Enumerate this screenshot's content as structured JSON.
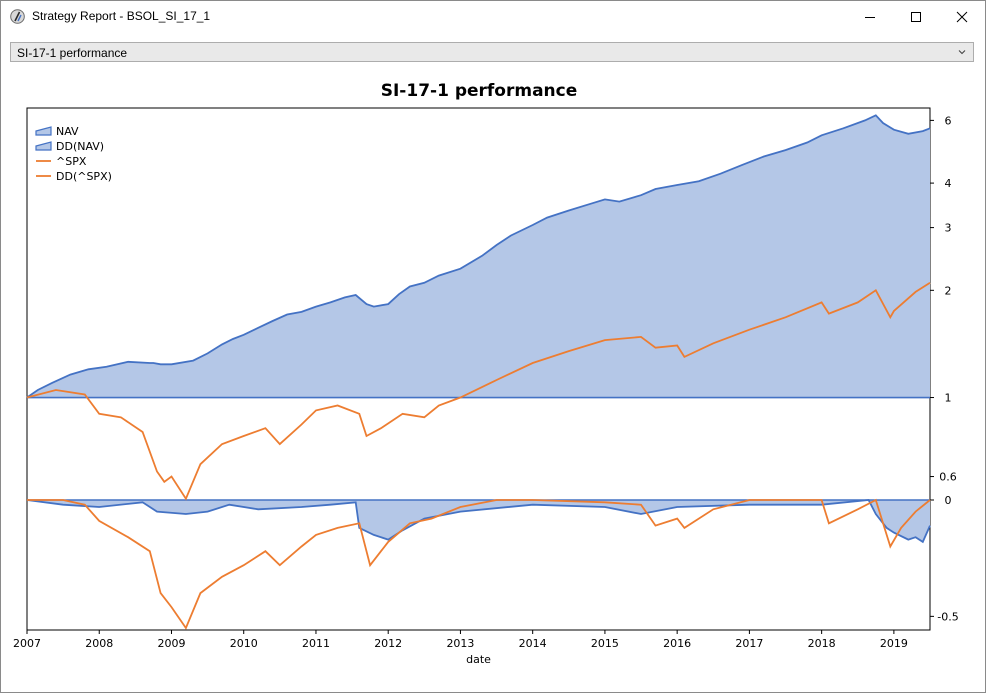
{
  "window": {
    "title": "Strategy Report - BSOL_SI_17_1",
    "icon": "app-icon",
    "buttons": [
      "minimize-icon",
      "maximize-icon",
      "close-icon"
    ]
  },
  "selector": {
    "value": "SI-17-1 performance",
    "icon": "chevron-down-icon"
  },
  "chart_data": {
    "type": "area",
    "title": "SI-17-1 performance",
    "xlabel": "date",
    "ylabel": "",
    "legend_position": "top-left",
    "x_ticks": [
      "2007",
      "2008",
      "2009",
      "2010",
      "2011",
      "2012",
      "2013",
      "2014",
      "2015",
      "2016",
      "2017",
      "2018",
      "2019"
    ],
    "xlim": [
      "2007-01-01",
      "2019-07-01"
    ],
    "panels": [
      {
        "name": "price",
        "scale": "log",
        "ylim": [
          0.55,
          6.5
        ],
        "y_ticks": [
          {
            "value": 6,
            "label": "6"
          },
          {
            "value": 4,
            "label": "4"
          },
          {
            "value": 3,
            "label": "3"
          },
          {
            "value": 2,
            "label": "2"
          },
          {
            "value": 1,
            "label": "1"
          },
          {
            "value": 0.6,
            "label": "0.6"
          }
        ],
        "area_baseline": 1
      },
      {
        "name": "drawdown",
        "scale": "linear",
        "ylim": [
          -0.55,
          0.0
        ],
        "y_ticks": [
          {
            "value": 0,
            "label": "0"
          },
          {
            "value": -0.5,
            "label": "-0.5"
          }
        ],
        "area_baseline": 0
      }
    ],
    "colors": {
      "nav": "#4472c4",
      "nav_fill": "#b4c7e7",
      "spx": "#ed7d31"
    },
    "series": [
      {
        "name": "NAV",
        "panel": "price",
        "style": "area",
        "color": "#4472c4",
        "x": [
          2007.0,
          2007.15,
          2007.35,
          2007.6,
          2007.85,
          2008.1,
          2008.4,
          2008.7,
          2008.75,
          2008.85,
          2009.0,
          2009.3,
          2009.5,
          2009.7,
          2009.85,
          2010.0,
          2010.2,
          2010.4,
          2010.6,
          2010.8,
          2011.0,
          2011.2,
          2011.4,
          2011.55,
          2011.7,
          2011.8,
          2012.0,
          2012.15,
          2012.3,
          2012.5,
          2012.7,
          2013.0,
          2013.3,
          2013.5,
          2013.7,
          2014.0,
          2014.2,
          2014.5,
          2014.8,
          2015.0,
          2015.2,
          2015.5,
          2015.7,
          2016.0,
          2016.3,
          2016.6,
          2016.9,
          2017.2,
          2017.5,
          2017.8,
          2018.0,
          2018.3,
          2018.6,
          2018.75,
          2018.85,
          2019.0,
          2019.2,
          2019.4,
          2019.5
        ],
        "values": [
          1.0,
          1.05,
          1.1,
          1.16,
          1.2,
          1.22,
          1.26,
          1.25,
          1.25,
          1.24,
          1.24,
          1.27,
          1.33,
          1.41,
          1.46,
          1.5,
          1.57,
          1.64,
          1.71,
          1.74,
          1.8,
          1.85,
          1.91,
          1.94,
          1.83,
          1.8,
          1.83,
          1.95,
          2.05,
          2.1,
          2.2,
          2.3,
          2.5,
          2.68,
          2.85,
          3.05,
          3.2,
          3.35,
          3.5,
          3.6,
          3.55,
          3.7,
          3.85,
          3.95,
          4.05,
          4.25,
          4.5,
          4.75,
          4.95,
          5.2,
          5.45,
          5.7,
          6.0,
          6.2,
          5.9,
          5.65,
          5.5,
          5.6,
          5.7
        ]
      },
      {
        "name": "DD(NAV)",
        "panel": "drawdown",
        "style": "area",
        "color": "#4472c4",
        "x": [
          2007.0,
          2007.5,
          2008.0,
          2008.6,
          2008.8,
          2009.2,
          2009.5,
          2009.8,
          2010.2,
          2010.8,
          2011.2,
          2011.55,
          2011.6,
          2011.8,
          2012.0,
          2012.2,
          2012.5,
          2013.0,
          2014.0,
          2015.0,
          2015.5,
          2016.0,
          2017.0,
          2018.0,
          2018.65,
          2018.75,
          2018.9,
          2019.0,
          2019.2,
          2019.3,
          2019.4,
          2019.5
        ],
        "values": [
          0,
          -0.02,
          -0.03,
          -0.01,
          -0.05,
          -0.06,
          -0.05,
          -0.02,
          -0.04,
          -0.03,
          -0.02,
          -0.01,
          -0.12,
          -0.15,
          -0.17,
          -0.13,
          -0.08,
          -0.05,
          -0.02,
          -0.03,
          -0.06,
          -0.03,
          -0.02,
          -0.02,
          0,
          -0.06,
          -0.12,
          -0.14,
          -0.17,
          -0.16,
          -0.18,
          -0.11
        ]
      },
      {
        "name": "^SPX",
        "panel": "price",
        "style": "line",
        "color": "#ed7d31",
        "x": [
          2007.0,
          2007.4,
          2007.8,
          2008.0,
          2008.3,
          2008.6,
          2008.8,
          2008.9,
          2009.0,
          2009.2,
          2009.4,
          2009.7,
          2010.0,
          2010.3,
          2010.5,
          2010.8,
          2011.0,
          2011.3,
          2011.6,
          2011.7,
          2011.9,
          2012.2,
          2012.5,
          2012.7,
          2013.0,
          2013.5,
          2014.0,
          2014.5,
          2015.0,
          2015.5,
          2015.7,
          2016.0,
          2016.1,
          2016.5,
          2017.0,
          2017.5,
          2018.0,
          2018.1,
          2018.5,
          2018.75,
          2018.95,
          2019.0,
          2019.3,
          2019.5
        ],
        "values": [
          1.0,
          1.05,
          1.02,
          0.9,
          0.88,
          0.8,
          0.62,
          0.58,
          0.6,
          0.52,
          0.65,
          0.74,
          0.78,
          0.82,
          0.74,
          0.84,
          0.92,
          0.95,
          0.9,
          0.78,
          0.82,
          0.9,
          0.88,
          0.95,
          1.0,
          1.12,
          1.25,
          1.35,
          1.45,
          1.48,
          1.38,
          1.4,
          1.3,
          1.42,
          1.55,
          1.68,
          1.85,
          1.72,
          1.85,
          2.0,
          1.68,
          1.75,
          1.98,
          2.1
        ]
      },
      {
        "name": "DD(^SPX)",
        "panel": "drawdown",
        "style": "line",
        "color": "#ed7d31",
        "x": [
          2007.0,
          2007.5,
          2007.8,
          2008.0,
          2008.4,
          2008.7,
          2008.85,
          2009.0,
          2009.2,
          2009.4,
          2009.7,
          2010.0,
          2010.3,
          2010.5,
          2010.8,
          2011.0,
          2011.3,
          2011.6,
          2011.75,
          2012.0,
          2012.3,
          2012.6,
          2013.0,
          2013.5,
          2014.0,
          2015.0,
          2015.5,
          2015.7,
          2016.0,
          2016.1,
          2016.5,
          2017.0,
          2018.0,
          2018.1,
          2018.5,
          2018.75,
          2018.95,
          2019.1,
          2019.3,
          2019.5
        ],
        "values": [
          0,
          0,
          -0.02,
          -0.09,
          -0.16,
          -0.22,
          -0.4,
          -0.46,
          -0.55,
          -0.4,
          -0.33,
          -0.28,
          -0.22,
          -0.28,
          -0.2,
          -0.15,
          -0.12,
          -0.1,
          -0.28,
          -0.18,
          -0.1,
          -0.08,
          -0.03,
          0,
          0,
          -0.01,
          -0.02,
          -0.11,
          -0.08,
          -0.12,
          -0.04,
          0,
          0,
          -0.1,
          -0.04,
          0,
          -0.2,
          -0.12,
          -0.05,
          0
        ]
      }
    ]
  }
}
